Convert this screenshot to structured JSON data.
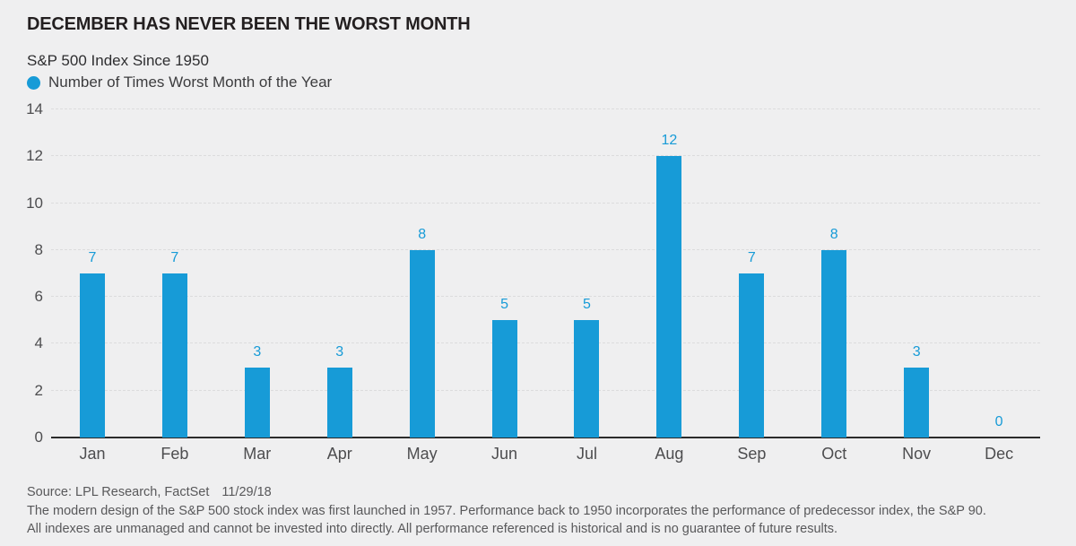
{
  "header": {
    "title": "DECEMBER HAS NEVER BEEN THE WORST MONTH",
    "subtitle": "S&P 500 Index Since 1950"
  },
  "legend": {
    "label": "Number of Times Worst Month of the Year",
    "marker": "circle",
    "marker_color": "#179bd7"
  },
  "chart_data": {
    "type": "bar",
    "title": "DECEMBER HAS NEVER BEEN THE WORST MONTH",
    "subtitle": "S&P 500 Index Since 1950",
    "series_name": "Number of Times Worst Month of the Year",
    "categories": [
      "Jan",
      "Feb",
      "Mar",
      "Apr",
      "May",
      "Jun",
      "Jul",
      "Aug",
      "Sep",
      "Oct",
      "Nov",
      "Dec"
    ],
    "values": [
      7,
      7,
      3,
      3,
      8,
      5,
      5,
      12,
      7,
      8,
      3,
      0
    ],
    "xlabel": "",
    "ylabel": "",
    "ylim": [
      0,
      14
    ],
    "yticks": [
      0,
      2,
      4,
      6,
      8,
      10,
      12,
      14
    ],
    "grid": "horizontal-dashed",
    "legend_position": "top-left",
    "bar_color": "#179bd7",
    "data_labels": "above-bars"
  },
  "footer": {
    "source": "Source: LPL Research, FactSet",
    "date": "11/29/18",
    "note1": "The modern design of the S&P 500 stock index was first launched in 1957. Performance back to 1950 incorporates the performance of predecessor index, the S&P 90.",
    "note2": "All indexes are unmanaged and cannot be invested into directly. All performance referenced is historical and is no guarantee of future results."
  },
  "colors": {
    "accent": "#179bd7",
    "background": "#efeff0",
    "axis": "#2b2b2b",
    "grid": "#dcdcdd",
    "title_text": "#231f20",
    "axis_text": "#4d4d4f",
    "footer_text": "#58585a"
  }
}
